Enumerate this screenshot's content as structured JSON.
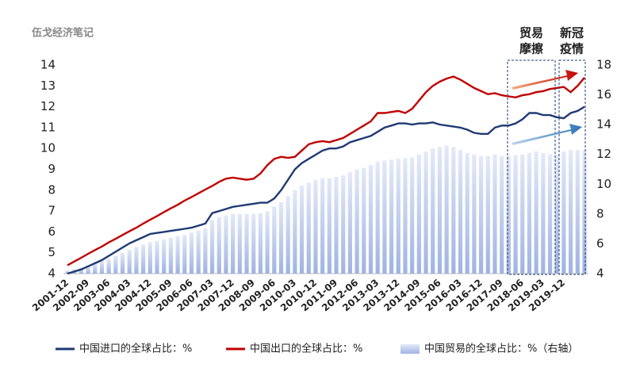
{
  "chart_data": {
    "type": "bar-line",
    "watermark": "伍戈经济笔记",
    "categories": [
      "2001-12",
      null,
      null,
      "2002-09",
      null,
      null,
      "2003-06",
      null,
      null,
      "2004-03",
      null,
      null,
      "2004-12",
      null,
      null,
      "2005-09",
      null,
      null,
      "2006-06",
      null,
      null,
      "2007-03",
      null,
      null,
      "2007-12",
      null,
      null,
      "2008-09",
      null,
      null,
      "2009-06",
      null,
      null,
      "2010-03",
      null,
      null,
      "2010-12",
      null,
      null,
      "2011-09",
      null,
      null,
      "2012-06",
      null,
      null,
      "2013-03",
      null,
      null,
      "2013-12",
      null,
      null,
      "2014-09",
      null,
      null,
      "2015-06",
      null,
      null,
      "2016-03",
      null,
      null,
      "2016-12",
      null,
      null,
      "2017-09",
      null,
      null,
      "2018-06",
      null,
      null,
      "2019-03",
      null,
      null,
      "2019-12",
      null,
      null,
      null
    ],
    "series": [
      {
        "name": "中国进口的全球占比：%",
        "type": "line",
        "color": "#1f3a73",
        "axis": "y",
        "values": [
          4.0,
          4.1,
          4.2,
          4.35,
          4.5,
          4.65,
          4.85,
          5.05,
          5.25,
          5.45,
          5.6,
          5.75,
          5.9,
          5.95,
          6.0,
          6.05,
          6.1,
          6.15,
          6.2,
          6.3,
          6.4,
          6.9,
          7.0,
          7.1,
          7.2,
          7.25,
          7.3,
          7.35,
          7.4,
          7.4,
          7.6,
          8.0,
          8.5,
          9.0,
          9.3,
          9.5,
          9.7,
          9.9,
          10.0,
          10.0,
          10.1,
          10.3,
          10.4,
          10.5,
          10.6,
          10.8,
          11.0,
          11.1,
          11.2,
          11.2,
          11.15,
          11.2,
          11.2,
          11.25,
          11.15,
          11.1,
          11.05,
          11.0,
          10.9,
          10.75,
          10.7,
          10.7,
          11.0,
          11.1,
          11.1,
          11.2,
          11.4,
          11.7,
          11.7,
          11.6,
          11.6,
          11.5,
          11.45,
          11.7,
          11.8,
          12.0
        ]
      },
      {
        "name": "中国出口的全球占比：%",
        "type": "line",
        "color": "#c00000",
        "axis": "y",
        "values": [
          4.4,
          4.58,
          4.76,
          4.95,
          5.13,
          5.3,
          5.5,
          5.67,
          5.85,
          6.03,
          6.2,
          6.4,
          6.58,
          6.76,
          6.95,
          7.13,
          7.3,
          7.5,
          7.67,
          7.85,
          8.03,
          8.2,
          8.4,
          8.55,
          8.6,
          8.55,
          8.5,
          8.55,
          8.8,
          9.2,
          9.5,
          9.6,
          9.55,
          9.6,
          9.9,
          10.2,
          10.3,
          10.35,
          10.3,
          10.4,
          10.5,
          10.7,
          10.9,
          11.1,
          11.3,
          11.7,
          11.7,
          11.75,
          11.8,
          11.7,
          11.9,
          12.3,
          12.7,
          13.0,
          13.2,
          13.35,
          13.45,
          13.3,
          13.1,
          12.9,
          12.75,
          12.6,
          12.65,
          12.55,
          12.5,
          12.45,
          12.55,
          12.6,
          12.7,
          12.75,
          12.85,
          12.9,
          12.95,
          12.7,
          13.0,
          13.4
        ]
      },
      {
        "name": "中国贸易的全球占比：%（右轴）",
        "type": "bar",
        "color": "#b9c8eb",
        "axis": "y2",
        "values": [
          4.2,
          4.3,
          4.4,
          4.55,
          4.7,
          4.85,
          5.0,
          5.2,
          5.4,
          5.6,
          5.8,
          5.95,
          6.1,
          6.2,
          6.3,
          6.4,
          6.5,
          6.6,
          6.75,
          6.9,
          7.05,
          7.6,
          7.8,
          7.9,
          8.0,
          8.0,
          8.0,
          8.0,
          8.05,
          8.2,
          8.5,
          8.8,
          9.2,
          9.6,
          9.9,
          10.1,
          10.3,
          10.4,
          10.4,
          10.5,
          10.6,
          10.8,
          11.0,
          11.1,
          11.3,
          11.5,
          11.6,
          11.65,
          11.7,
          11.75,
          11.8,
          12.0,
          12.2,
          12.4,
          12.5,
          12.6,
          12.5,
          12.3,
          12.1,
          12.0,
          11.9,
          11.9,
          12.0,
          11.9,
          11.9,
          11.95,
          12.0,
          12.1,
          12.2,
          12.1,
          12.0,
          12.0,
          12.2,
          12.3,
          12.3,
          12.3
        ]
      }
    ],
    "ylim": [
      4,
      14
    ],
    "yticks": [
      4,
      5,
      6,
      7,
      8,
      9,
      10,
      11,
      12,
      13,
      14
    ],
    "y2lim": [
      4,
      18
    ],
    "y2ticks": [
      4,
      6,
      8,
      10,
      12,
      14,
      16,
      18
    ],
    "annotations": [
      {
        "lines": [
          "贸易",
          "摩擦"
        ]
      },
      {
        "lines": [
          "新冠",
          "疫情"
        ]
      }
    ],
    "legend": "bottom"
  }
}
